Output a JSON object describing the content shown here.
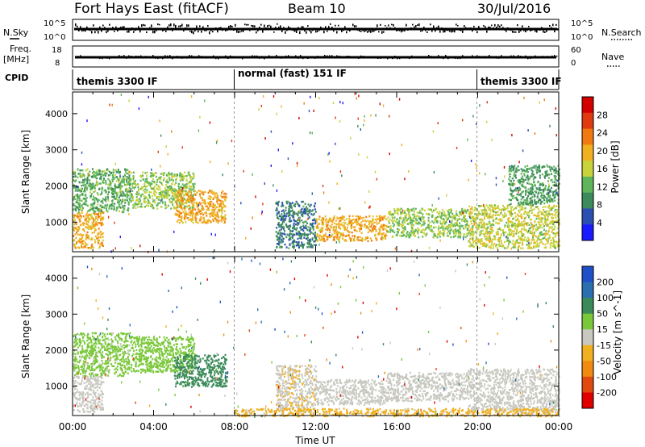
{
  "header": {
    "station": "Fort Hays East (fitACF)",
    "beam": "Beam 10",
    "date": "30/Jul/2016"
  },
  "nsky_panel": {
    "left_label": "N.Sky",
    "right_label": "N.Search",
    "left_ticks": [
      "10^5",
      "10^0"
    ],
    "right_ticks": [
      "10^5",
      "10^0"
    ]
  },
  "freq_panel": {
    "left_label_top": "Freq.",
    "left_label_unit": "[MHz]",
    "right_label": "Nave",
    "left_ticks": [
      "18",
      "8"
    ],
    "right_ticks": [
      "60",
      "0"
    ]
  },
  "cpid_panel": {
    "label": "CPID",
    "segments": [
      {
        "start_hour": 0,
        "end_hour": 8,
        "label": "themis 3300 IF"
      },
      {
        "start_hour": 8,
        "end_hour": 20,
        "label": "normal (fast) 151 IF"
      },
      {
        "start_hour": 20,
        "end_hour": 24,
        "label": "themis 3300 IF"
      }
    ]
  },
  "time_axis": {
    "label": "Time UT",
    "ticks": [
      "00:00",
      "04:00",
      "08:00",
      "12:00",
      "16:00",
      "20:00",
      "00:00"
    ]
  },
  "colors": {
    "power_scale": [
      "#1a1aff",
      "#2b4fb0",
      "#3d8a5c",
      "#5fb55a",
      "#c8d23a",
      "#f0b020",
      "#f07a10",
      "#e03a10",
      "#d40000"
    ],
    "velocity_scale": [
      "#2050c8",
      "#2a6fb0",
      "#3a8a5a",
      "#7ac83a",
      "#c8c8c0",
      "#f0b020",
      "#f08a10",
      "#e04a10",
      "#e00000"
    ]
  },
  "chart_data": [
    {
      "type": "heatmap",
      "title": "Power",
      "xlabel": "",
      "ylabel": "Slant Range [km]",
      "x_range_hours": [
        0,
        24
      ],
      "ylim": [
        180,
        4600
      ],
      "yticks": [
        "1000",
        "2000",
        "3000",
        "4000"
      ],
      "colorbar": {
        "label": "Power [dB]",
        "ticks": [
          "4",
          "8",
          "12",
          "16",
          "20",
          "24",
          "28"
        ],
        "range": [
          0,
          32
        ]
      },
      "regions": [
        {
          "hour_start": 0.0,
          "hour_end": 1.5,
          "range_start": 300,
          "range_end": 1300,
          "value": 20
        },
        {
          "hour_start": 0.0,
          "hour_end": 2.8,
          "range_start": 1300,
          "range_end": 2500,
          "value": 12
        },
        {
          "hour_start": 2.8,
          "hour_end": 6.0,
          "range_start": 1400,
          "range_end": 2400,
          "value": 14
        },
        {
          "hour_start": 5.0,
          "hour_end": 7.6,
          "range_start": 1000,
          "range_end": 1900,
          "value": 20
        },
        {
          "hour_start": 10.0,
          "hour_end": 12.0,
          "range_start": 300,
          "range_end": 1600,
          "value": 8
        },
        {
          "hour_start": 12.0,
          "hour_end": 15.5,
          "range_start": 500,
          "range_end": 1200,
          "value": 20
        },
        {
          "hour_start": 15.5,
          "hour_end": 19.5,
          "range_start": 600,
          "range_end": 1400,
          "value": 14
        },
        {
          "hour_start": 19.5,
          "hour_end": 24.0,
          "range_start": 300,
          "range_end": 1500,
          "value": 16
        },
        {
          "hour_start": 21.5,
          "hour_end": 24.0,
          "range_start": 1500,
          "range_end": 2600,
          "value": 10
        }
      ]
    },
    {
      "type": "heatmap",
      "title": "Velocity",
      "xlabel": "Time UT",
      "ylabel": "Slant Range [km]",
      "x_range_hours": [
        0,
        24
      ],
      "ylim": [
        180,
        4600
      ],
      "yticks": [
        "1000",
        "2000",
        "3000",
        "4000"
      ],
      "colorbar": {
        "label": "Velocity [m s^-1]",
        "ticks": [
          "200",
          "100",
          "50",
          "15",
          "-15",
          "-50",
          "-100",
          "-200"
        ],
        "range": [
          -250,
          250
        ]
      },
      "regions": [
        {
          "hour_start": 0.0,
          "hour_end": 1.5,
          "range_start": 300,
          "range_end": 1300,
          "value": 0
        },
        {
          "hour_start": 0.0,
          "hour_end": 2.8,
          "range_start": 1300,
          "range_end": 2500,
          "value": 40
        },
        {
          "hour_start": 2.8,
          "hour_end": 6.0,
          "range_start": 1400,
          "range_end": 2400,
          "value": 60
        },
        {
          "hour_start": 5.0,
          "hour_end": 7.6,
          "range_start": 1000,
          "range_end": 1900,
          "value": 120
        },
        {
          "hour_start": 10.0,
          "hour_end": 12.0,
          "range_start": 300,
          "range_end": 1600,
          "value": -20
        },
        {
          "hour_start": 12.0,
          "hour_end": 15.5,
          "range_start": 500,
          "range_end": 1200,
          "value": 0
        },
        {
          "hour_start": 15.5,
          "hour_end": 19.5,
          "range_start": 600,
          "range_end": 1400,
          "value": 0
        },
        {
          "hour_start": 19.5,
          "hour_end": 24.0,
          "range_start": 300,
          "range_end": 1500,
          "value": 0
        },
        {
          "hour_start": 8.0,
          "hour_end": 24.0,
          "range_start": 180,
          "range_end": 400,
          "value": -40
        }
      ]
    }
  ]
}
